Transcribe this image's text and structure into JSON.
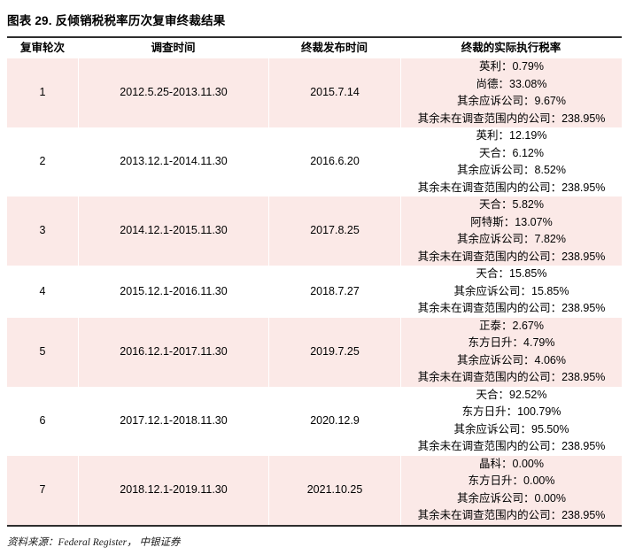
{
  "chart_data": {
    "type": "table",
    "title": "图表 29. 反倾销税税率历次复审终裁结果",
    "columns": [
      "复审轮次",
      "调查时间",
      "终裁发布时间",
      "终裁的实际执行税率"
    ],
    "rows": [
      {
        "round": "1",
        "period": "2012.5.25-2013.11.30",
        "published": "2015.7.14",
        "rates": [
          "英利：0.79%",
          "尚德：33.08%",
          "其余应诉公司：9.67%",
          "其余未在调查范围内的公司：238.95%"
        ]
      },
      {
        "round": "2",
        "period": "2013.12.1-2014.11.30",
        "published": "2016.6.20",
        "rates": [
          "英利：12.19%",
          "天合：6.12%",
          "其余应诉公司：8.52%",
          "其余未在调查范围内的公司：238.95%"
        ]
      },
      {
        "round": "3",
        "period": "2014.12.1-2015.11.30",
        "published": "2017.8.25",
        "rates": [
          "天合：5.82%",
          "阿特斯：13.07%",
          "其余应诉公司：7.82%",
          "其余未在调查范围内的公司：238.95%"
        ]
      },
      {
        "round": "4",
        "period": "2015.12.1-2016.11.30",
        "published": "2018.7.27",
        "rates": [
          "天合：15.85%",
          "其余应诉公司：15.85%",
          "其余未在调查范围内的公司：238.95%"
        ]
      },
      {
        "round": "5",
        "period": "2016.12.1-2017.11.30",
        "published": "2019.7.25",
        "rates": [
          "正泰：2.67%",
          "东方日升：4.79%",
          "其余应诉公司：4.06%",
          "其余未在调查范围内的公司：238.95%"
        ]
      },
      {
        "round": "6",
        "period": "2017.12.1-2018.11.30",
        "published": "2020.12.9",
        "rates": [
          "天合：92.52%",
          "东方日升：100.79%",
          "其余应诉公司：95.50%",
          "其余未在调查范围内的公司：238.95%"
        ]
      },
      {
        "round": "7",
        "period": "2018.12.1-2019.11.30",
        "published": "2021.10.25",
        "rates": [
          "晶科：0.00%",
          "东方日升：0.00%",
          "其余应诉公司：0.00%",
          "其余未在调查范围内的公司：238.95%"
        ]
      }
    ],
    "source": "资料来源：Federal Register， 中银证券",
    "layout": {
      "row_alternation": "odd rows pink, even rows white",
      "grid": "faint white separators inside pink rows"
    }
  },
  "colors": {
    "row_highlight_pink": "#fbe9e7",
    "rule_dark": "#2e2e2e"
  }
}
